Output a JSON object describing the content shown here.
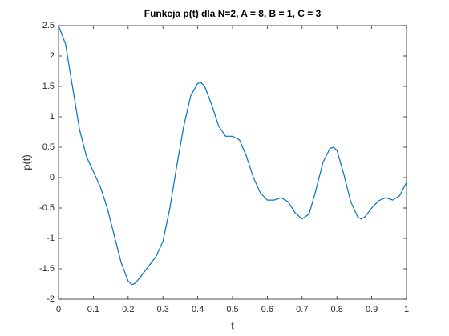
{
  "chart_data": {
    "type": "line",
    "title": "Funkcja p(t) dla N=2, A = 8, B = 1, C = 3",
    "xlabel": "t",
    "ylabel": "p(t)",
    "x": [
      0,
      0.02,
      0.04,
      0.06,
      0.08,
      0.1,
      0.12,
      0.14,
      0.16,
      0.18,
      0.2,
      0.21,
      0.22,
      0.24,
      0.26,
      0.28,
      0.3,
      0.32,
      0.34,
      0.36,
      0.38,
      0.4,
      0.41,
      0.42,
      0.44,
      0.46,
      0.48,
      0.5,
      0.52,
      0.54,
      0.56,
      0.58,
      0.6,
      0.62,
      0.64,
      0.66,
      0.68,
      0.7,
      0.72,
      0.74,
      0.76,
      0.78,
      0.79,
      0.8,
      0.82,
      0.84,
      0.86,
      0.87,
      0.88,
      0.9,
      0.92,
      0.94,
      0.96,
      0.98,
      1.0
    ],
    "series": [
      {
        "name": "p(t)",
        "color": "#0072bd",
        "values": [
          2.5,
          2.2,
          1.5,
          0.8,
          0.35,
          0.1,
          -0.15,
          -0.5,
          -0.95,
          -1.4,
          -1.7,
          -1.76,
          -1.74,
          -1.6,
          -1.45,
          -1.3,
          -1.05,
          -0.5,
          0.2,
          0.85,
          1.35,
          1.55,
          1.56,
          1.5,
          1.2,
          0.85,
          0.68,
          0.68,
          0.62,
          0.35,
          0,
          -0.25,
          -0.37,
          -0.37,
          -0.33,
          -0.4,
          -0.58,
          -0.68,
          -0.6,
          -0.2,
          0.25,
          0.48,
          0.5,
          0.45,
          0.05,
          -0.4,
          -0.65,
          -0.68,
          -0.65,
          -0.5,
          -0.38,
          -0.33,
          -0.37,
          -0.3,
          -0.08
        ]
      }
    ],
    "xlim": [
      0,
      1
    ],
    "xticks": [
      0,
      0.1,
      0.2,
      0.3,
      0.4,
      0.5,
      0.6,
      0.7,
      0.8,
      0.9,
      1
    ],
    "ylim": [
      -2,
      2.5
    ],
    "yticks": [
      -2,
      -1.5,
      -1,
      -0.5,
      0,
      0.5,
      1,
      1.5,
      2,
      2.5
    ],
    "grid": false
  }
}
